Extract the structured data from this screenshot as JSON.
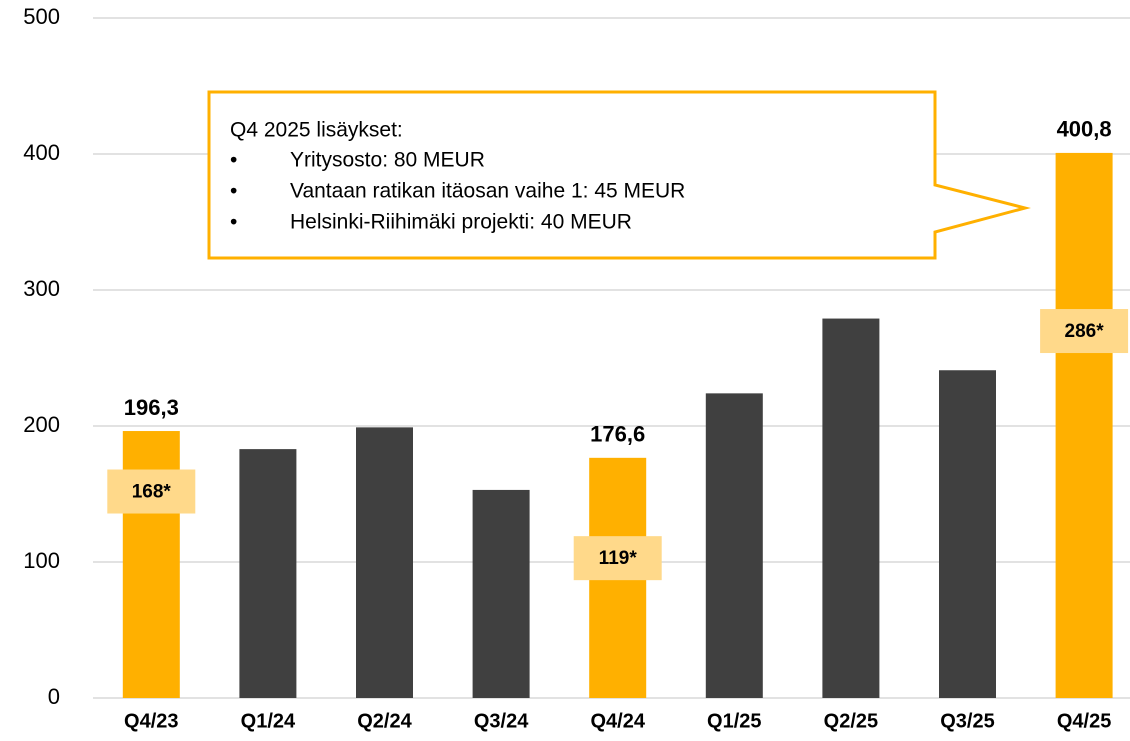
{
  "chart_data": {
    "type": "bar",
    "categories": [
      "Q4/23",
      "Q1/24",
      "Q2/24",
      "Q3/24",
      "Q4/24",
      "Q1/25",
      "Q2/25",
      "Q3/25",
      "Q4/25"
    ],
    "values": [
      196.3,
      183,
      199,
      153,
      176.6,
      224,
      279,
      241,
      400.8
    ],
    "value_labels": [
      "196,3",
      null,
      null,
      null,
      "176,6",
      null,
      null,
      null,
      "400,8"
    ],
    "colors": [
      "#ffb000",
      "#404040",
      "#404040",
      "#404040",
      "#ffb000",
      "#404040",
      "#404040",
      "#404040",
      "#ffb000"
    ],
    "secondary_values": [
      168,
      null,
      null,
      null,
      119,
      null,
      null,
      null,
      286
    ],
    "secondary_value_labels": [
      "168*",
      null,
      null,
      null,
      "119*",
      null,
      null,
      null,
      "286*"
    ],
    "ylim": [
      0,
      500
    ],
    "yticks": [
      0,
      100,
      200,
      300,
      400,
      500
    ],
    "grid": true,
    "annotation": {
      "title": "Q4 2025 lisäykset:",
      "items": [
        "Yritysosto: 80 MEUR",
        "Vantaan ratikan itäosan vaihe 1: 45 MEUR",
        "Helsinki-Riihimäki projekti: 40 MEUR"
      ]
    }
  }
}
